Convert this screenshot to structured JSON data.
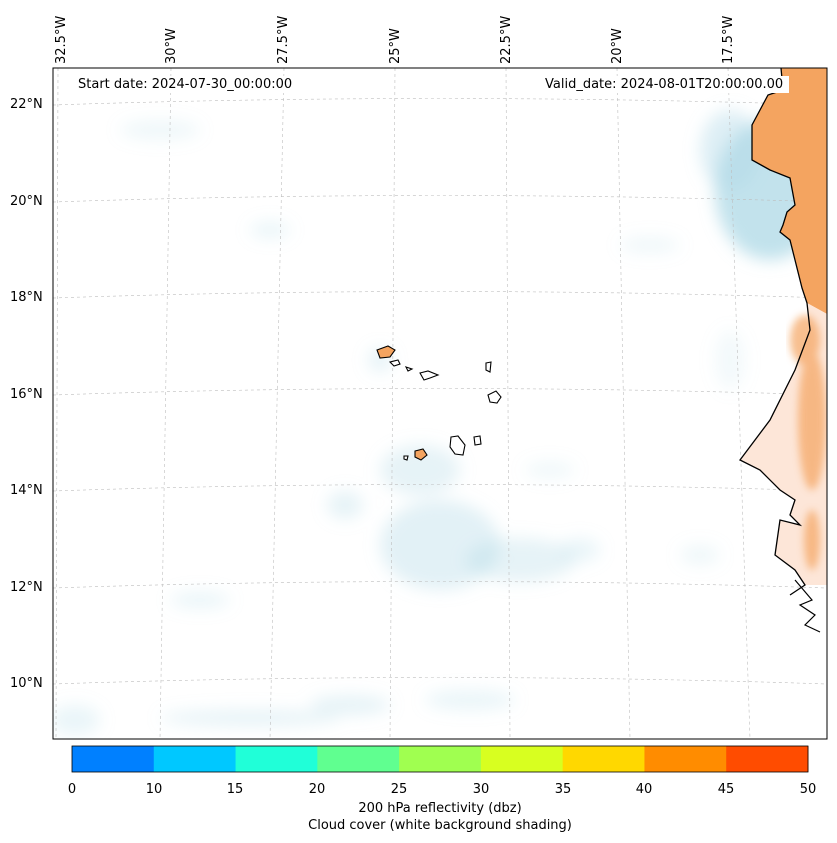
{
  "map": {
    "start_date_label": "Start date: 2024-07-30_00:00:00",
    "valid_date_label": "Valid_date: 2024-08-01T20:00:00.00",
    "longitude_labels": [
      "32.5°W",
      "30°W",
      "27.5°W",
      "25°W",
      "22.5°W",
      "20°W",
      "17.5°W"
    ],
    "latitude_labels": [
      "22°N",
      "20°N",
      "18°N",
      "16°N",
      "14°N",
      "12°N",
      "10°N"
    ],
    "region": "Cape Verde islands and West African coast",
    "land_color": "#f4a460",
    "cloud_color": "#add8e6"
  },
  "colorbar": {
    "ticks": [
      "0",
      "10",
      "15",
      "20",
      "25",
      "30",
      "35",
      "40",
      "45",
      "50"
    ],
    "colors": [
      "#0080ff",
      "#00c8ff",
      "#20ffd8",
      "#60ff90",
      "#a0ff50",
      "#d8ff20",
      "#ffd800",
      "#ff8c00",
      "#ff4c00"
    ],
    "label": "200 hPa reflectivity (dbz)",
    "sublabel": "Cloud cover (white background shading)"
  }
}
